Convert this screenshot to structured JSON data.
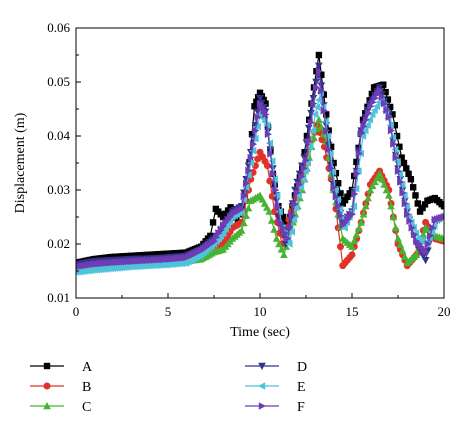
{
  "chart_data": {
    "type": "line",
    "title": "",
    "xlabel": "Time (sec)",
    "ylabel": "Displacement (m)",
    "xlim": [
      0,
      20
    ],
    "ylim": [
      0.01,
      0.06
    ],
    "xticks": [
      0,
      5,
      10,
      15,
      20
    ],
    "yticks": [
      0.01,
      0.02,
      0.03,
      0.04,
      0.05,
      0.06
    ],
    "xtick_labels": [
      "0",
      "5",
      "10",
      "15",
      "20"
    ],
    "ytick_labels": [
      "0.01",
      "0.02",
      "0.03",
      "0.04",
      "0.05",
      "0.06"
    ],
    "grid": false,
    "legend_position": "bottom",
    "series": [
      {
        "name": "A",
        "color": "#000000",
        "marker": "square",
        "points": [
          [
            0,
            0.0165
          ],
          [
            1,
            0.0172
          ],
          [
            2,
            0.0176
          ],
          [
            3,
            0.0178
          ],
          [
            4,
            0.018
          ],
          [
            5,
            0.0182
          ],
          [
            6,
            0.0184
          ],
          [
            6.8,
            0.0195
          ],
          [
            7.3,
            0.0215
          ],
          [
            7.6,
            0.0265
          ],
          [
            8,
            0.025
          ],
          [
            8.4,
            0.0268
          ],
          [
            8.8,
            0.024
          ],
          [
            9.3,
            0.03
          ],
          [
            9.7,
            0.0455
          ],
          [
            10,
            0.048
          ],
          [
            10.3,
            0.046
          ],
          [
            10.7,
            0.033
          ],
          [
            11,
            0.027
          ],
          [
            11.5,
            0.023
          ],
          [
            11.9,
            0.029
          ],
          [
            12.3,
            0.034
          ],
          [
            12.8,
            0.046
          ],
          [
            13.2,
            0.055
          ],
          [
            13.6,
            0.044
          ],
          [
            14,
            0.035
          ],
          [
            14.5,
            0.0275
          ],
          [
            15,
            0.03
          ],
          [
            15.6,
            0.043
          ],
          [
            16.2,
            0.049
          ],
          [
            16.7,
            0.0495
          ],
          [
            17.2,
            0.044
          ],
          [
            17.7,
            0.036
          ],
          [
            18.2,
            0.032
          ],
          [
            18.7,
            0.026
          ],
          [
            19.1,
            0.028
          ],
          [
            19.5,
            0.0285
          ],
          [
            20,
            0.027
          ]
        ]
      },
      {
        "name": "B",
        "color": "#e03228",
        "marker": "circle",
        "points": [
          [
            0,
            0.016
          ],
          [
            1,
            0.0165
          ],
          [
            2,
            0.0168
          ],
          [
            3,
            0.0166
          ],
          [
            4,
            0.0165
          ],
          [
            5,
            0.0168
          ],
          [
            6,
            0.017
          ],
          [
            6.8,
            0.0175
          ],
          [
            7.5,
            0.019
          ],
          [
            8,
            0.02
          ],
          [
            8.5,
            0.023
          ],
          [
            9,
            0.024
          ],
          [
            9.5,
            0.032
          ],
          [
            10,
            0.037
          ],
          [
            10.4,
            0.0345
          ],
          [
            10.8,
            0.026
          ],
          [
            11.2,
            0.02
          ],
          [
            11.7,
            0.026
          ],
          [
            12.2,
            0.031
          ],
          [
            12.7,
            0.038
          ],
          [
            13.1,
            0.042
          ],
          [
            13.5,
            0.038
          ],
          [
            14,
            0.03
          ],
          [
            14.5,
            0.016
          ],
          [
            15,
            0.018
          ],
          [
            15.5,
            0.024
          ],
          [
            16,
            0.031
          ],
          [
            16.5,
            0.0335
          ],
          [
            17,
            0.03
          ],
          [
            17.5,
            0.02
          ],
          [
            18,
            0.016
          ],
          [
            18.5,
            0.018
          ],
          [
            19,
            0.024
          ],
          [
            19.5,
            0.021
          ],
          [
            20,
            0.0205
          ]
        ]
      },
      {
        "name": "C",
        "color": "#46b432",
        "marker": "triangle",
        "points": [
          [
            0,
            0.0155
          ],
          [
            1,
            0.0158
          ],
          [
            2,
            0.016
          ],
          [
            3,
            0.0162
          ],
          [
            4,
            0.0163
          ],
          [
            5,
            0.0165
          ],
          [
            6,
            0.0168
          ],
          [
            6.8,
            0.0172
          ],
          [
            7.5,
            0.0185
          ],
          [
            8,
            0.019
          ],
          [
            8.5,
            0.021
          ],
          [
            9,
            0.0225
          ],
          [
            9.5,
            0.028
          ],
          [
            10,
            0.029
          ],
          [
            10.5,
            0.026
          ],
          [
            10.9,
            0.021
          ],
          [
            11.3,
            0.018
          ],
          [
            11.8,
            0.024
          ],
          [
            12.3,
            0.03
          ],
          [
            12.8,
            0.038
          ],
          [
            13.2,
            0.043
          ],
          [
            13.6,
            0.039
          ],
          [
            14,
            0.03
          ],
          [
            14.5,
            0.021
          ],
          [
            15,
            0.0195
          ],
          [
            15.5,
            0.024
          ],
          [
            16,
            0.03
          ],
          [
            16.5,
            0.033
          ],
          [
            17,
            0.029
          ],
          [
            17.5,
            0.021
          ],
          [
            18,
            0.0165
          ],
          [
            18.5,
            0.018
          ],
          [
            19,
            0.023
          ],
          [
            19.5,
            0.0215
          ],
          [
            20,
            0.021
          ]
        ]
      },
      {
        "name": "D",
        "color": "#32328c",
        "marker": "triangle-down",
        "points": [
          [
            0,
            0.0162
          ],
          [
            1,
            0.0168
          ],
          [
            2,
            0.017
          ],
          [
            3,
            0.0172
          ],
          [
            4,
            0.0173
          ],
          [
            5,
            0.0175
          ],
          [
            6,
            0.0178
          ],
          [
            6.8,
            0.019
          ],
          [
            7.5,
            0.021
          ],
          [
            8,
            0.023
          ],
          [
            8.5,
            0.026
          ],
          [
            9,
            0.027
          ],
          [
            9.5,
            0.037
          ],
          [
            10,
            0.047
          ],
          [
            10.3,
            0.0445
          ],
          [
            10.7,
            0.034
          ],
          [
            11,
            0.025
          ],
          [
            11.4,
            0.02
          ],
          [
            11.9,
            0.03
          ],
          [
            12.4,
            0.036
          ],
          [
            12.9,
            0.047
          ],
          [
            13.2,
            0.053
          ],
          [
            13.6,
            0.042
          ],
          [
            14,
            0.031
          ],
          [
            14.5,
            0.024
          ],
          [
            15,
            0.026
          ],
          [
            15.5,
            0.041
          ],
          [
            16,
            0.046
          ],
          [
            16.5,
            0.049
          ],
          [
            17,
            0.044
          ],
          [
            17.5,
            0.034
          ],
          [
            18,
            0.026
          ],
          [
            18.5,
            0.02
          ],
          [
            19,
            0.017
          ],
          [
            19.5,
            0.024
          ],
          [
            20,
            0.025
          ]
        ]
      },
      {
        "name": "E",
        "color": "#50c3dc",
        "marker": "triangle-left",
        "points": [
          [
            0,
            0.0148
          ],
          [
            1,
            0.0152
          ],
          [
            2,
            0.0155
          ],
          [
            3,
            0.0158
          ],
          [
            4,
            0.016
          ],
          [
            5,
            0.0162
          ],
          [
            6,
            0.0165
          ],
          [
            6.8,
            0.018
          ],
          [
            7.5,
            0.02
          ],
          [
            8,
            0.022
          ],
          [
            8.5,
            0.025
          ],
          [
            9,
            0.026
          ],
          [
            9.5,
            0.035
          ],
          [
            10,
            0.044
          ],
          [
            10.4,
            0.042
          ],
          [
            10.8,
            0.032
          ],
          [
            11.2,
            0.023
          ],
          [
            11.6,
            0.02
          ],
          [
            12.1,
            0.029
          ],
          [
            12.6,
            0.035
          ],
          [
            13,
            0.044
          ],
          [
            13.3,
            0.048
          ],
          [
            13.7,
            0.04
          ],
          [
            14.1,
            0.03
          ],
          [
            14.6,
            0.023
          ],
          [
            15.1,
            0.027
          ],
          [
            15.6,
            0.04
          ],
          [
            16.1,
            0.044
          ],
          [
            16.6,
            0.047
          ],
          [
            17.1,
            0.042
          ],
          [
            17.6,
            0.033
          ],
          [
            18.1,
            0.025
          ],
          [
            18.6,
            0.021
          ],
          [
            19.1,
            0.02
          ],
          [
            19.6,
            0.0245
          ],
          [
            20,
            0.0255
          ]
        ]
      },
      {
        "name": "F",
        "color": "#6e3cb4",
        "marker": "triangle-right",
        "points": [
          [
            0,
            0.0158
          ],
          [
            1,
            0.0163
          ],
          [
            2,
            0.0166
          ],
          [
            3,
            0.0168
          ],
          [
            4,
            0.017
          ],
          [
            5,
            0.0172
          ],
          [
            6,
            0.0175
          ],
          [
            6.8,
            0.0188
          ],
          [
            7.5,
            0.0205
          ],
          [
            8,
            0.0235
          ],
          [
            8.5,
            0.0255
          ],
          [
            9,
            0.0265
          ],
          [
            9.5,
            0.036
          ],
          [
            10,
            0.046
          ],
          [
            10.3,
            0.044
          ],
          [
            10.7,
            0.033
          ],
          [
            11.1,
            0.024
          ],
          [
            11.5,
            0.021
          ],
          [
            12,
            0.0295
          ],
          [
            12.5,
            0.0355
          ],
          [
            12.9,
            0.046
          ],
          [
            13.2,
            0.052
          ],
          [
            13.6,
            0.041
          ],
          [
            14,
            0.0305
          ],
          [
            14.5,
            0.0235
          ],
          [
            15,
            0.0255
          ],
          [
            15.5,
            0.0405
          ],
          [
            16,
            0.0455
          ],
          [
            16.5,
            0.0485
          ],
          [
            17,
            0.0435
          ],
          [
            17.5,
            0.0335
          ],
          [
            18,
            0.0255
          ],
          [
            18.5,
            0.0205
          ],
          [
            19,
            0.0185
          ],
          [
            19.5,
            0.0245
          ],
          [
            20,
            0.025
          ]
        ]
      }
    ]
  }
}
